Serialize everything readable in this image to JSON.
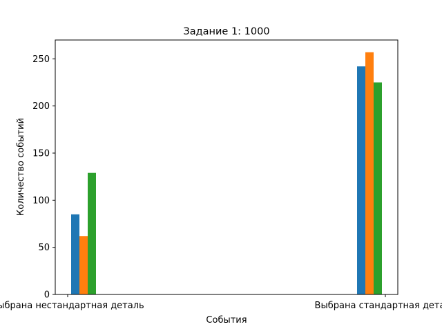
{
  "chart_data": {
    "type": "bar",
    "title": "Задание 1: 1000",
    "xlabel": "События",
    "ylabel": "Количество событий",
    "categories": [
      "Выбрана нестандартная деталь",
      "Выбрана стандартная деталь"
    ],
    "series": [
      {
        "values": [
          85,
          242
        ],
        "color": "#1f77b4"
      },
      {
        "values": [
          62,
          257
        ],
        "color": "#ff7f0e"
      },
      {
        "values": [
          129,
          225
        ],
        "color": "#2ca02c"
      }
    ],
    "ylim": [
      0,
      270
    ],
    "yticks": [
      0,
      50,
      100,
      150,
      200,
      250
    ],
    "grid": false,
    "legend": "none"
  }
}
